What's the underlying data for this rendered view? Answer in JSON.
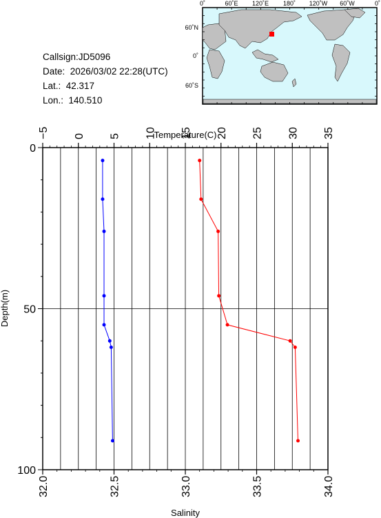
{
  "info": {
    "callsign": "Callsign:JD5096",
    "date": "Date:  2026/03/02 22:28(UTC)",
    "lat": "Lat.:  42.317",
    "lon": "Lon.:  140.510"
  },
  "map": {
    "top_labels": [
      "0˚",
      "60˚E",
      "120˚E",
      "180˚",
      "120˚W",
      "60˚W",
      "0˚"
    ],
    "left_labels": [
      "60˚N",
      "0˚",
      "60˚S"
    ],
    "ocean_color": "#d8f8fc",
    "land_color": "#c0c0c0",
    "marker_color": "#ff0000"
  },
  "chart_data": {
    "type": "line",
    "x_top_label": "Temperature(C)",
    "x_bottom_label": "Salinity",
    "ylabel": "Depth(m)",
    "temperature_ticks": [
      "−5",
      "0",
      "5",
      "10",
      "15",
      "20",
      "25",
      "30",
      "35"
    ],
    "salinity_ticks": [
      "32.0",
      "32.5",
      "33.0",
      "33.5",
      "34.0"
    ],
    "depth_ticks": [
      "0",
      "50",
      "100"
    ],
    "temperature_range": [
      -5,
      35
    ],
    "salinity_range": [
      32.0,
      34.0
    ],
    "depth_range": [
      0,
      100
    ],
    "series": [
      {
        "name": "Temperature",
        "axis": "temperature",
        "color": "#ff0000",
        "depth": [
          4,
          16,
          26,
          46,
          55,
          60,
          62,
          91
        ],
        "values": [
          17.0,
          17.2,
          19.6,
          19.7,
          20.9,
          29.7,
          30.4,
          30.8
        ]
      },
      {
        "name": "Salinity",
        "axis": "salinity",
        "color": "#0000ff",
        "depth": [
          4,
          16,
          26,
          46,
          55,
          60,
          62,
          91
        ],
        "values": [
          32.42,
          32.42,
          32.43,
          32.43,
          32.43,
          32.47,
          32.48,
          32.49
        ]
      }
    ]
  }
}
